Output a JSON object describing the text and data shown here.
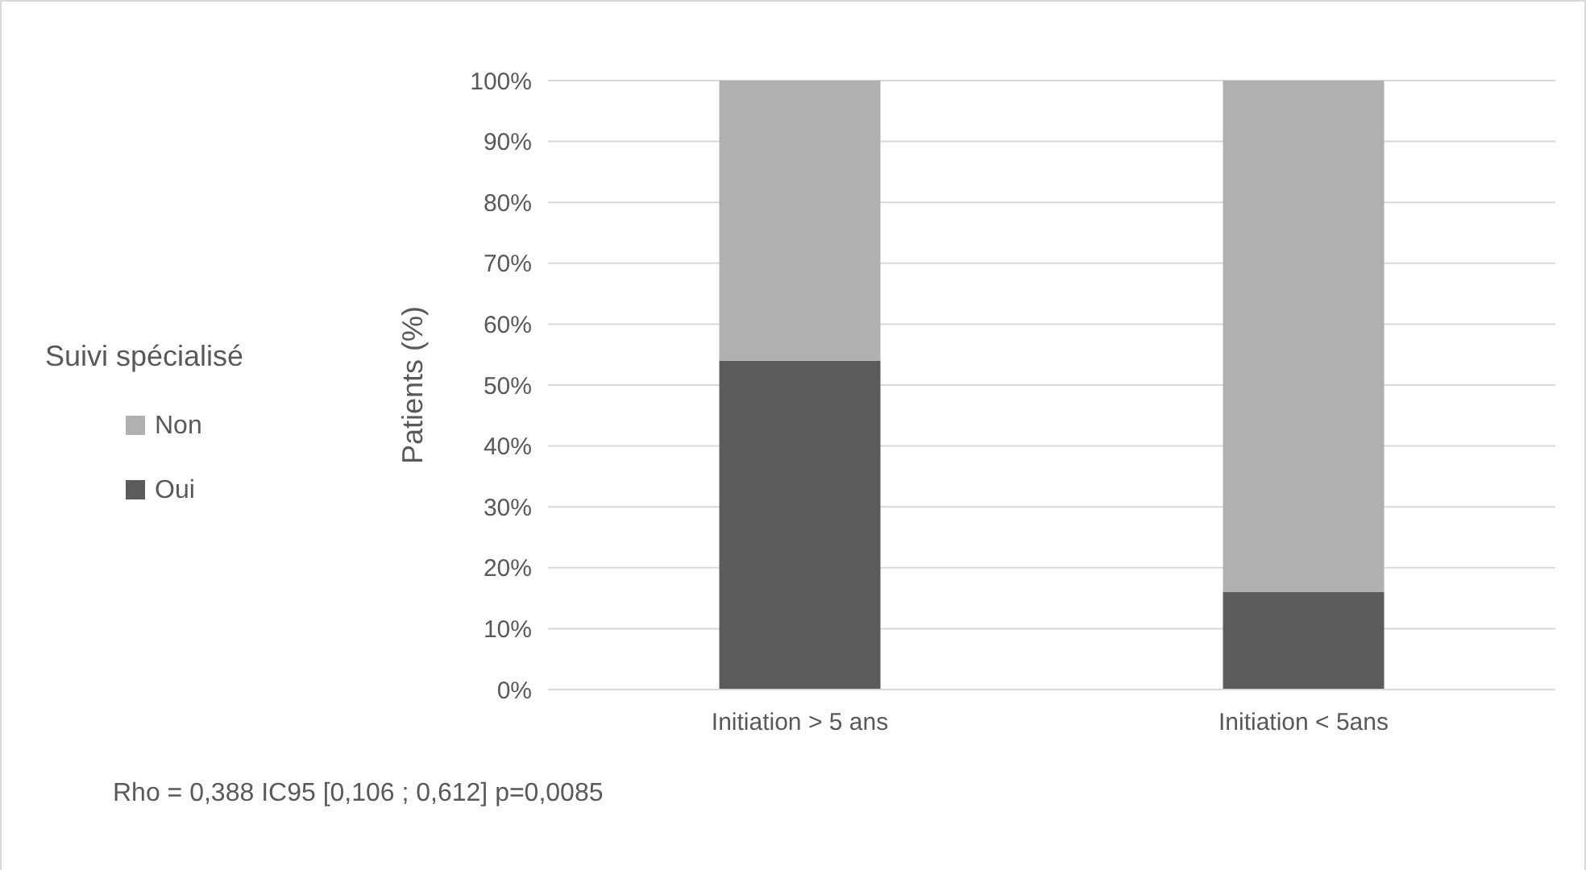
{
  "chart_data": {
    "type": "bar",
    "stacked": true,
    "categories": [
      "Initiation > 5 ans",
      "Initiation < 5ans"
    ],
    "series": [
      {
        "name": "Oui",
        "color": "#5b5b5b",
        "values": [
          54,
          16
        ]
      },
      {
        "name": "Non",
        "color": "#b0b0b0",
        "values": [
          46,
          84
        ]
      }
    ],
    "ylabel": "Patients (%)",
    "legend_title": "Suivi spécialisé",
    "legend": "left",
    "ylim": [
      0,
      100
    ],
    "yticks": [
      {
        "value": 0,
        "label": "0%"
      },
      {
        "value": 10,
        "label": "10%"
      },
      {
        "value": 20,
        "label": "20%"
      },
      {
        "value": 30,
        "label": "30%"
      },
      {
        "value": 40,
        "label": "40%"
      },
      {
        "value": 50,
        "label": "50%"
      },
      {
        "value": 60,
        "label": "60%"
      },
      {
        "value": 70,
        "label": "70%"
      },
      {
        "value": 80,
        "label": "80%"
      },
      {
        "value": 90,
        "label": "90%"
      },
      {
        "value": 100,
        "label": "100%"
      }
    ],
    "grid": "y",
    "annotations": [
      "Rho = 0,388 IC95 [0,106 ; 0,612] p=0,0085"
    ]
  }
}
